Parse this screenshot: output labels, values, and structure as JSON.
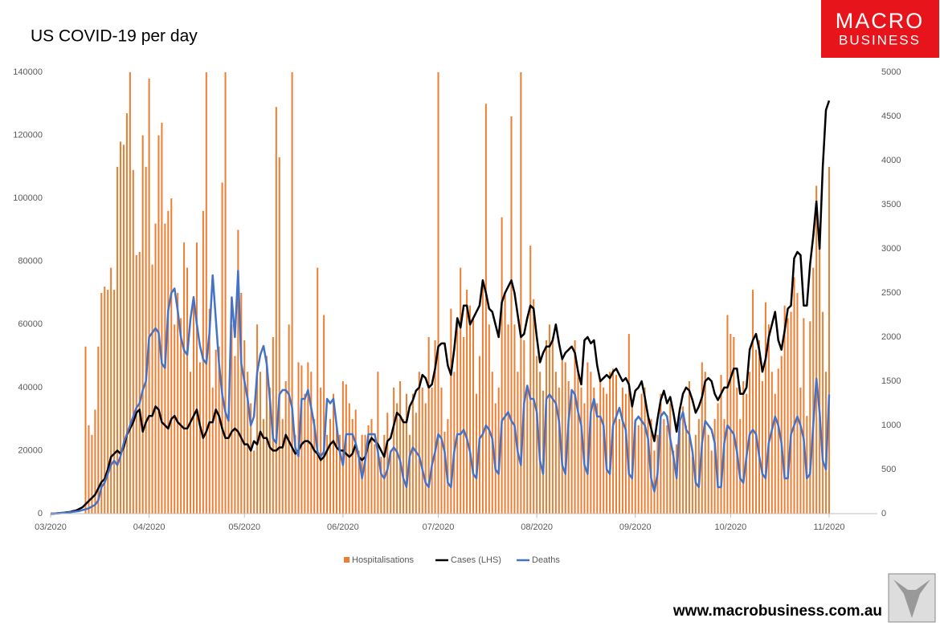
{
  "chart_data": {
    "type": "bar-line",
    "title": "US COVID-19 per day",
    "brand": {
      "line1": "MACRO",
      "line2": "BUSINESS",
      "url": "www.macrobusiness.com.au"
    },
    "legend": "bottom",
    "categories": [
      "03/2020",
      null,
      null,
      null,
      null,
      null,
      null,
      null,
      null,
      null,
      null,
      null,
      null,
      null,
      null,
      null,
      null,
      null,
      null,
      null,
      null,
      null,
      null,
      null,
      null,
      null,
      null,
      null,
      null,
      null,
      null,
      "04/2020",
      null,
      null,
      null,
      null,
      null,
      null,
      null,
      null,
      null,
      null,
      null,
      null,
      null,
      null,
      null,
      null,
      null,
      null,
      null,
      null,
      null,
      null,
      null,
      null,
      null,
      null,
      null,
      null,
      null,
      "05/2020",
      null,
      null,
      null,
      null,
      null,
      null,
      null,
      null,
      null,
      null,
      null,
      null,
      null,
      null,
      null,
      null,
      null,
      null,
      null,
      null,
      null,
      null,
      null,
      null,
      null,
      null,
      null,
      null,
      null,
      null,
      "06/2020",
      null,
      null,
      null,
      null,
      null,
      null,
      null,
      null,
      null,
      null,
      null,
      null,
      null,
      null,
      null,
      null,
      null,
      null,
      null,
      null,
      null,
      null,
      null,
      null,
      null,
      null,
      null,
      null,
      null,
      "07/2020",
      null,
      null,
      null,
      null,
      null,
      null,
      null,
      null,
      null,
      null,
      null,
      null,
      null,
      null,
      null,
      null,
      null,
      null,
      null,
      null,
      null,
      null,
      null,
      null,
      null,
      null,
      null,
      null,
      null,
      null,
      "08/2020",
      null,
      null,
      null,
      null,
      null,
      null,
      null,
      null,
      null,
      null,
      null,
      null,
      null,
      null,
      null,
      null,
      null,
      null,
      null,
      null,
      null,
      null,
      null,
      null,
      null,
      null,
      null,
      null,
      null,
      null,
      "09/2020",
      null,
      null,
      null,
      null,
      null,
      null,
      null,
      null,
      null,
      null,
      null,
      null,
      null,
      null,
      null,
      null,
      null,
      null,
      null,
      null,
      null,
      null,
      null,
      null,
      null,
      null,
      null,
      null,
      null,
      "10/2020",
      null,
      null,
      null,
      null,
      null,
      null,
      null,
      null,
      null,
      null,
      null,
      null,
      null,
      null,
      null,
      null,
      null,
      null,
      null,
      null,
      null,
      null,
      null,
      null,
      null,
      null,
      null,
      null,
      null,
      null,
      "11/2020"
    ],
    "series": [
      {
        "name": "Hospitalisations",
        "kind": "bar",
        "color": "#ED7D31",
        "values": [
          0,
          0,
          0,
          0,
          0,
          0,
          0,
          0,
          0,
          0,
          0,
          53000,
          28000,
          25000,
          33000,
          53000,
          70000,
          72000,
          71000,
          78000,
          71000,
          110000,
          118000,
          117000,
          127000,
          140000,
          109000,
          82000,
          83000,
          120000,
          110000,
          138000,
          79000,
          92000,
          120000,
          124000,
          92000,
          96000,
          100000,
          60000,
          70000,
          62000,
          86000,
          78000,
          45000,
          69000,
          86000,
          48000,
          96000,
          140000,
          65000,
          40000,
          52000,
          53000,
          105000,
          140000,
          30000,
          60000,
          50000,
          90000,
          70000,
          55000,
          45000,
          35000,
          20000,
          60000,
          45000,
          30000,
          50000,
          40000,
          56000,
          129000,
          113000,
          30000,
          42000,
          60000,
          140000,
          25000,
          48000,
          47000,
          38000,
          48000,
          45000,
          30000,
          78000,
          40000,
          63000,
          25000,
          30000,
          38000,
          28000,
          25000,
          42000,
          41000,
          35000,
          30000,
          33000,
          20000,
          25000,
          25000,
          28000,
          30000,
          22000,
          45000,
          18000,
          25000,
          32000,
          20000,
          40000,
          35000,
          42000,
          30000,
          38000,
          25000,
          38000,
          32000,
          45000,
          40000,
          35000,
          56000,
          40000,
          55000,
          140000,
          40000,
          26000,
          30000,
          65000,
          45000,
          60000,
          78000,
          56000,
          71000,
          66000,
          62000,
          38000,
          50000,
          74000,
          130000,
          60000,
          45000,
          35000,
          40000,
          94000,
          70000,
          60000,
          126000,
          60000,
          45000,
          140000,
          55000,
          40000,
          85000,
          68000,
          50000,
          45000,
          39000,
          55000,
          60000,
          55000,
          45000,
          40000,
          50000,
          48000,
          42000,
          38000,
          55000,
          45000,
          40000,
          35000,
          48000,
          45000,
          40000,
          35000,
          42000,
          40000,
          38000,
          45000,
          46000,
          44000,
          30000,
          40000,
          38000,
          57000,
          36000,
          30000,
          28000,
          38000,
          40000,
          32000,
          30000,
          20000,
          25000,
          38000,
          30000,
          28000,
          35000,
          20000,
          22000,
          30000,
          34000,
          28000,
          42000,
          18000,
          25000,
          30000,
          48000,
          45000,
          25000,
          20000,
          30000,
          35000,
          44000,
          30000,
          63000,
          57000,
          56000,
          40000,
          30000,
          42000,
          38000,
          45000,
          71000,
          52000,
          55000,
          42000,
          67000,
          60000,
          45000,
          38000,
          46000,
          50000,
          66000,
          62000,
          64000,
          75000,
          70000,
          40000,
          62000,
          31000,
          61000,
          78000,
          104000,
          86000,
          64000,
          45000,
          110000
        ]
      },
      {
        "name": "Cases (LHS)",
        "kind": "line",
        "color": "#000000",
        "values": [
          0,
          0,
          100,
          200,
          300,
          400,
          500,
          800,
          1000,
          1500,
          2000,
          3000,
          4000,
          5000,
          6000,
          8000,
          10000,
          11000,
          14000,
          18000,
          19000,
          20000,
          19000,
          21000,
          25000,
          27000,
          29000,
          32000,
          33000,
          26000,
          29000,
          31000,
          31000,
          34000,
          33000,
          29000,
          28000,
          27000,
          30000,
          31000,
          29000,
          28000,
          27000,
          27000,
          29000,
          31000,
          33000,
          28000,
          24000,
          26000,
          29000,
          29000,
          33000,
          31000,
          27000,
          24000,
          24000,
          26000,
          27000,
          26000,
          24000,
          22000,
          22000,
          20000,
          23000,
          22000,
          26000,
          24000,
          24000,
          21000,
          20000,
          20000,
          21000,
          21000,
          25000,
          23000,
          21000,
          19000,
          20000,
          22000,
          23000,
          23000,
          22000,
          20000,
          19000,
          17000,
          18000,
          20000,
          22000,
          23000,
          21000,
          20000,
          20000,
          19000,
          18000,
          19000,
          22000,
          18000,
          17000,
          18000,
          22000,
          24000,
          23000,
          22000,
          20000,
          18000,
          23000,
          24000,
          28000,
          32000,
          31000,
          29000,
          29000,
          34000,
          36000,
          39000,
          40000,
          44000,
          43000,
          40000,
          41000,
          46000,
          53000,
          54000,
          54000,
          47000,
          44000,
          52000,
          62000,
          59000,
          66000,
          66000,
          60000,
          62000,
          64000,
          66000,
          74000,
          70000,
          65000,
          64000,
          60000,
          56000,
          67000,
          70000,
          72000,
          74000,
          70000,
          63000,
          56000,
          57000,
          62000,
          66000,
          65000,
          56000,
          48000,
          51000,
          53000,
          53000,
          55000,
          60000,
          54000,
          49000,
          51000,
          52000,
          53000,
          51000,
          45000,
          41000,
          55000,
          56000,
          54000,
          55000,
          47000,
          42000,
          43000,
          44000,
          43000,
          45000,
          46000,
          44000,
          42000,
          43000,
          41000,
          34000,
          39000,
          40000,
          42000,
          37000,
          31000,
          27000,
          23000,
          30000,
          36000,
          39000,
          35000,
          37000,
          32000,
          26000,
          33000,
          38000,
          40000,
          39000,
          36000,
          32000,
          34000,
          37000,
          42000,
          43000,
          42000,
          38000,
          36000,
          38000,
          40000,
          40000,
          43000,
          46000,
          46000,
          38000,
          38000,
          40000,
          52000,
          55000,
          57000,
          52000,
          45000,
          49000,
          56000,
          60000,
          64000,
          55000,
          52000,
          58000,
          65000,
          66000,
          81000,
          83000,
          82000,
          66000,
          66000,
          79000,
          88000,
          99000,
          84000,
          110000,
          128000,
          131000
        ]
      },
      {
        "name": "Deaths",
        "kind": "line",
        "axis": "y2",
        "color": "#4472C4",
        "values": [
          0,
          0,
          5,
          5,
          10,
          10,
          15,
          20,
          25,
          30,
          40,
          50,
          60,
          80,
          100,
          150,
          300,
          350,
          450,
          550,
          600,
          550,
          650,
          800,
          900,
          1000,
          1100,
          1200,
          1250,
          1400,
          1500,
          2000,
          2050,
          2100,
          2050,
          1700,
          1650,
          2300,
          2500,
          2550,
          2300,
          2000,
          1850,
          1800,
          2200,
          2450,
          2150,
          1900,
          1750,
          1700,
          2050,
          2700,
          2200,
          1700,
          1350,
          1150,
          1050,
          2450,
          2000,
          2750,
          1700,
          1500,
          1300,
          1000,
          1100,
          1600,
          1800,
          1900,
          1700,
          1300,
          850,
          800,
          1350,
          1400,
          1400,
          1350,
          1200,
          750,
          650,
          1300,
          1300,
          1400,
          1200,
          1000,
          700,
          650,
          700,
          1300,
          1250,
          1300,
          1000,
          700,
          550,
          900,
          900,
          900,
          800,
          650,
          400,
          600,
          900,
          900,
          900,
          700,
          450,
          400,
          500,
          700,
          750,
          700,
          600,
          400,
          300,
          650,
          750,
          700,
          650,
          500,
          350,
          300,
          550,
          700,
          900,
          850,
          700,
          350,
          300,
          700,
          900,
          900,
          950,
          850,
          700,
          450,
          400,
          850,
          900,
          1000,
          950,
          850,
          500,
          450,
          1050,
          1100,
          1150,
          1050,
          1000,
          700,
          550,
          1250,
          1450,
          1300,
          1300,
          1150,
          600,
          450,
          1300,
          1350,
          1300,
          1250,
          1050,
          550,
          450,
          1050,
          1400,
          1350,
          1150,
          1000,
          550,
          450,
          1150,
          1300,
          1100,
          1100,
          1000,
          500,
          450,
          1000,
          1100,
          1200,
          1050,
          950,
          450,
          400,
          1050,
          1100,
          1050,
          1000,
          850,
          400,
          250,
          450,
          1100,
          1150,
          1100,
          850,
          650,
          400,
          1050,
          1150,
          950,
          900,
          700,
          350,
          300,
          800,
          1050,
          1000,
          950,
          800,
          300,
          300,
          800,
          1000,
          950,
          900,
          700,
          400,
          350,
          650,
          900,
          950,
          900,
          650,
          450,
          400,
          800,
          950,
          1100,
          1000,
          800,
          400,
          400,
          900,
          1000,
          1100,
          1000,
          850,
          400,
          450,
          1000,
          1530,
          1150,
          600,
          500,
          1350
        ]
      }
    ],
    "ylim": [
      0,
      140000
    ],
    "yticks": [
      0,
      20000,
      40000,
      60000,
      80000,
      100000,
      120000,
      140000
    ],
    "y2lim": [
      0,
      5000
    ],
    "y2ticks": [
      0,
      500,
      1000,
      1500,
      2000,
      2500,
      3000,
      3500,
      4000,
      4500,
      5000
    ],
    "grid": false
  }
}
